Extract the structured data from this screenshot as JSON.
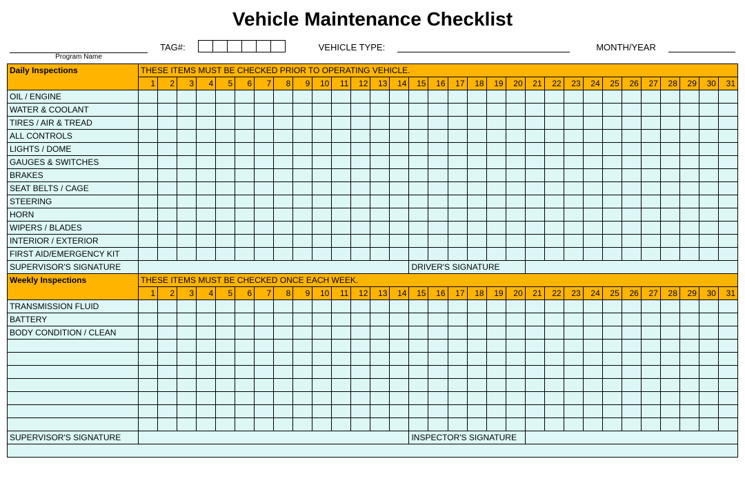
{
  "title": "Vehicle Maintenance Checklist",
  "header": {
    "program_label": "Program Name",
    "tag_label": "TAG#:",
    "tag_box_count": 6,
    "vehicle_type_label": "VEHICLE TYPE:",
    "month_year_label": "MONTH/YEAR"
  },
  "colors": {
    "header_bg": "#ffb400",
    "cell_bg": "#ddf7f7",
    "border": "#000000"
  },
  "daily": {
    "section_title": "Daily Inspections",
    "note": "THESE ITEMS MUST BE CHECKED PRIOR TO OPERATING VEHICLE.",
    "days": 31,
    "rows": [
      "OIL / ENGINE",
      "WATER & COOLANT",
      "TIRES / AIR & TREAD",
      "ALL CONTROLS",
      "LIGHTS / DOME",
      "GAUGES & SWITCHES",
      "BRAKES",
      "SEAT BELTS / CAGE",
      "STEERING",
      "HORN",
      "WIPERS / BLADES",
      "INTERIOR / EXTERIOR",
      "FIRST AID/EMERGENCY KIT"
    ],
    "sig_left": "SUPERVISOR'S SIGNATURE",
    "sig_right": "DRIVER'S SIGNATURE"
  },
  "weekly": {
    "section_title": "Weekly Inspections",
    "note": "THESE ITEMS MUST BE CHECKED ONCE EACH WEEK.",
    "days": 31,
    "rows": [
      "TRANSMISSION FLUID",
      "BATTERY",
      "BODY CONDITION / CLEAN",
      "",
      "",
      "",
      "",
      "",
      "",
      ""
    ],
    "sig_left": "SUPERVISOR'S SIGNATURE",
    "sig_right": "INSPECTOR'S SIGNATURE"
  }
}
